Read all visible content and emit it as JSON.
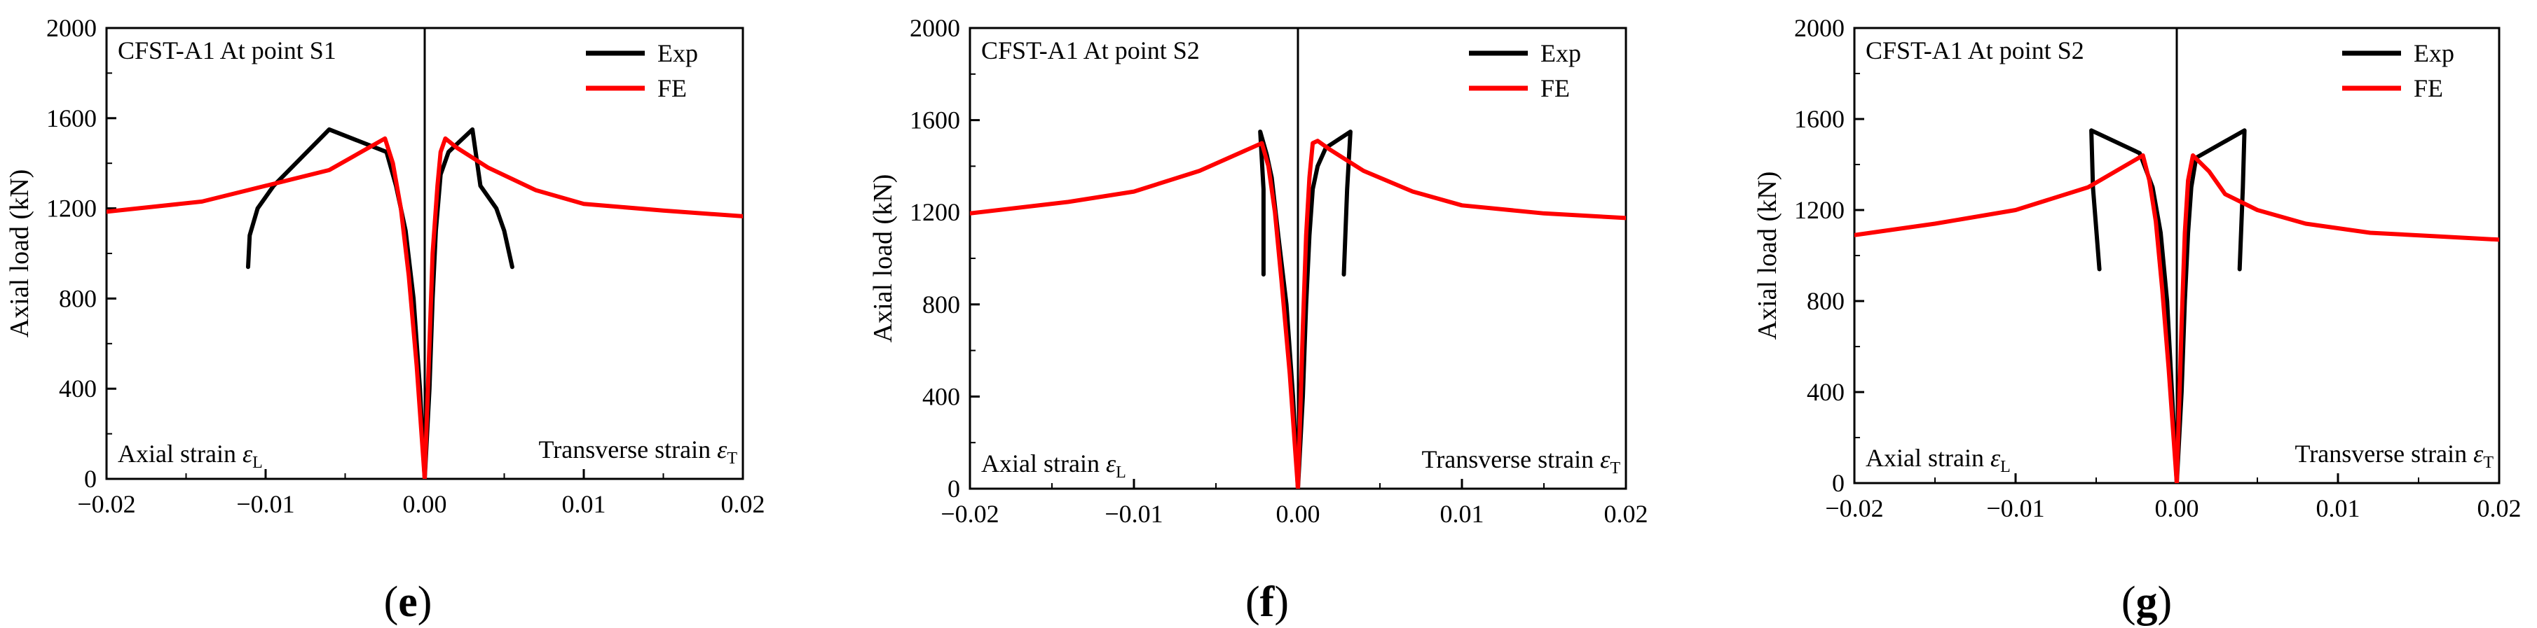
{
  "figure": {
    "colors": {
      "axis": "#000000",
      "exp": "#000000",
      "fe": "#ff0000",
      "background": "#ffffff"
    }
  },
  "chart_data": [
    {
      "type": "line",
      "panel_label": "(e)",
      "title": "CFST-A1  At point S1",
      "xlabel": "",
      "ylabel": "Axial load (kN)",
      "xlim": [
        -0.02,
        0.02
      ],
      "ylim": [
        0,
        2000
      ],
      "xticks": [
        -0.02,
        -0.01,
        0.0,
        0.01,
        0.02
      ],
      "xtick_labels": [
        "−0.02",
        "−0.01",
        "0.00",
        "0.01",
        "0.02"
      ],
      "yticks": [
        0,
        400,
        800,
        1200,
        1600,
        2000
      ],
      "ytick_labels": [
        "0",
        "400",
        "800",
        "1200",
        "1600",
        "2000"
      ],
      "annotations": {
        "left_label": "Axial strain",
        "left_symbol": "ε",
        "left_sub": "L",
        "right_label": "Transverse strain",
        "right_symbol": "ε",
        "right_sub": "T"
      },
      "legend": {
        "position": "top-right",
        "entries": [
          "Exp",
          "FE"
        ]
      },
      "series": [
        {
          "name": "Exp",
          "color": "#000000",
          "segments": [
            [
              [
                0,
                0
              ],
              [
                -0.0003,
                400
              ],
              [
                -0.0007,
                800
              ],
              [
                -0.0012,
                1100
              ],
              [
                -0.0018,
                1300
              ],
              [
                -0.0024,
                1450
              ],
              [
                -0.006,
                1550
              ],
              [
                -0.0095,
                1300
              ],
              [
                -0.0105,
                1200
              ],
              [
                -0.011,
                1080
              ],
              [
                -0.0111,
                940
              ]
            ],
            [
              [
                0,
                0
              ],
              [
                0.0003,
                400
              ],
              [
                0.0005,
                800
              ],
              [
                0.0007,
                1100
              ],
              [
                0.001,
                1350
              ],
              [
                0.0015,
                1450
              ],
              [
                0.003,
                1550
              ],
              [
                0.0035,
                1300
              ],
              [
                0.0045,
                1200
              ],
              [
                0.005,
                1100
              ],
              [
                0.0055,
                940
              ]
            ]
          ]
        },
        {
          "name": "FE",
          "color": "#ff0000",
          "segments": [
            [
              [
                0,
                0
              ],
              [
                -0.0005,
                500
              ],
              [
                -0.001,
                900
              ],
              [
                -0.0015,
                1200
              ],
              [
                -0.002,
                1400
              ],
              [
                -0.0025,
                1510
              ],
              [
                -0.006,
                1370
              ],
              [
                -0.01,
                1300
              ],
              [
                -0.014,
                1230
              ],
              [
                -0.02,
                1185
              ]
            ],
            [
              [
                0,
                0
              ],
              [
                0.0003,
                600
              ],
              [
                0.0005,
                1000
              ],
              [
                0.0008,
                1300
              ],
              [
                0.001,
                1450
              ],
              [
                0.0013,
                1510
              ],
              [
                0.002,
                1470
              ],
              [
                0.004,
                1380
              ],
              [
                0.007,
                1280
              ],
              [
                0.01,
                1220
              ],
              [
                0.015,
                1190
              ],
              [
                0.02,
                1165
              ]
            ]
          ]
        }
      ]
    },
    {
      "type": "line",
      "panel_label": "(f)",
      "title": "CFST-A1  At point S2",
      "xlabel": "",
      "ylabel": "Axial load (kN)",
      "xlim": [
        -0.02,
        0.02
      ],
      "ylim": [
        0,
        2000
      ],
      "xticks": [
        -0.02,
        -0.01,
        0.0,
        0.01,
        0.02
      ],
      "xtick_labels": [
        "−0.02",
        "−0.01",
        "0.00",
        "0.01",
        "0.02"
      ],
      "yticks": [
        0,
        400,
        800,
        1200,
        1600,
        2000
      ],
      "ytick_labels": [
        "0",
        "400",
        "800",
        "1200",
        "1600",
        "2000"
      ],
      "annotations": {
        "left_label": "Axial strain",
        "left_symbol": "ε",
        "left_sub": "L",
        "right_label": "Transverse strain",
        "right_symbol": "ε",
        "right_sub": "T"
      },
      "legend": {
        "position": "top-right",
        "entries": [
          "Exp",
          "FE"
        ]
      },
      "series": [
        {
          "name": "Exp",
          "color": "#000000",
          "segments": [
            [
              [
                0,
                0
              ],
              [
                -0.0003,
                400
              ],
              [
                -0.0007,
                800
              ],
              [
                -0.0012,
                1100
              ],
              [
                -0.0016,
                1350
              ],
              [
                -0.0019,
                1450
              ],
              [
                -0.0023,
                1550
              ],
              [
                -0.0021,
                1300
              ],
              [
                -0.0021,
                930
              ]
            ],
            [
              [
                0,
                0
              ],
              [
                0.0003,
                400
              ],
              [
                0.0005,
                800
              ],
              [
                0.0007,
                1100
              ],
              [
                0.0009,
                1300
              ],
              [
                0.0012,
                1400
              ],
              [
                0.0017,
                1480
              ],
              [
                0.0032,
                1550
              ],
              [
                0.003,
                1300
              ],
              [
                0.0028,
                930
              ]
            ]
          ]
        },
        {
          "name": "FE",
          "color": "#ff0000",
          "segments": [
            [
              [
                0,
                0
              ],
              [
                -0.0005,
                500
              ],
              [
                -0.001,
                900
              ],
              [
                -0.0014,
                1200
              ],
              [
                -0.0018,
                1400
              ],
              [
                -0.0022,
                1500
              ],
              [
                -0.006,
                1380
              ],
              [
                -0.01,
                1290
              ],
              [
                -0.014,
                1245
              ],
              [
                -0.02,
                1195
              ]
            ],
            [
              [
                0,
                0
              ],
              [
                0.0003,
                700
              ],
              [
                0.0005,
                1100
              ],
              [
                0.0007,
                1350
              ],
              [
                0.0009,
                1500
              ],
              [
                0.0012,
                1510
              ],
              [
                0.002,
                1470
              ],
              [
                0.004,
                1380
              ],
              [
                0.007,
                1290
              ],
              [
                0.01,
                1230
              ],
              [
                0.015,
                1195
              ],
              [
                0.02,
                1175
              ]
            ]
          ]
        }
      ]
    },
    {
      "type": "line",
      "panel_label": "(g)",
      "title": "CFST-A1  At point S2",
      "xlabel": "",
      "ylabel": "Axial load (kN)",
      "xlim": [
        -0.02,
        0.02
      ],
      "ylim": [
        0,
        2000
      ],
      "xticks": [
        -0.02,
        -0.01,
        0.0,
        0.01,
        0.02
      ],
      "xtick_labels": [
        "−0.02",
        "−0.01",
        "0.00",
        "0.01",
        "0.02"
      ],
      "yticks": [
        0,
        400,
        800,
        1200,
        1600,
        2000
      ],
      "ytick_labels": [
        "0",
        "400",
        "800",
        "1200",
        "1600",
        "2000"
      ],
      "annotations": {
        "left_label": "Axial strain",
        "left_symbol": "ε",
        "left_sub": "L",
        "right_label": "Transverse strain",
        "right_symbol": "ε",
        "right_sub": "T"
      },
      "legend": {
        "position": "top-right",
        "entries": [
          "Exp",
          "FE"
        ]
      },
      "series": [
        {
          "name": "Exp",
          "color": "#000000",
          "segments": [
            [
              [
                0,
                0
              ],
              [
                -0.0003,
                400
              ],
              [
                -0.0006,
                800
              ],
              [
                -0.001,
                1100
              ],
              [
                -0.0015,
                1300
              ],
              [
                -0.0023,
                1450
              ],
              [
                -0.0053,
                1550
              ],
              [
                -0.0052,
                1300
              ],
              [
                -0.0048,
                940
              ]
            ],
            [
              [
                0,
                0
              ],
              [
                0.0003,
                400
              ],
              [
                0.0005,
                800
              ],
              [
                0.0007,
                1100
              ],
              [
                0.0009,
                1300
              ],
              [
                0.0012,
                1430
              ],
              [
                0.0042,
                1550
              ],
              [
                0.0041,
                1300
              ],
              [
                0.0039,
                940
              ]
            ]
          ]
        },
        {
          "name": "FE",
          "color": "#ff0000",
          "segments": [
            [
              [
                0,
                0
              ],
              [
                -0.0005,
                500
              ],
              [
                -0.0009,
                850
              ],
              [
                -0.0013,
                1150
              ],
              [
                -0.0017,
                1330
              ],
              [
                -0.0021,
                1440
              ],
              [
                -0.0055,
                1300
              ],
              [
                -0.01,
                1200
              ],
              [
                -0.015,
                1140
              ],
              [
                -0.02,
                1090
              ]
            ],
            [
              [
                0,
                0
              ],
              [
                0.0003,
                700
              ],
              [
                0.0005,
                1100
              ],
              [
                0.0007,
                1330
              ],
              [
                0.001,
                1440
              ],
              [
                0.002,
                1370
              ],
              [
                0.003,
                1270
              ],
              [
                0.005,
                1200
              ],
              [
                0.008,
                1140
              ],
              [
                0.012,
                1100
              ],
              [
                0.016,
                1085
              ],
              [
                0.02,
                1070
              ]
            ]
          ]
        }
      ]
    }
  ]
}
